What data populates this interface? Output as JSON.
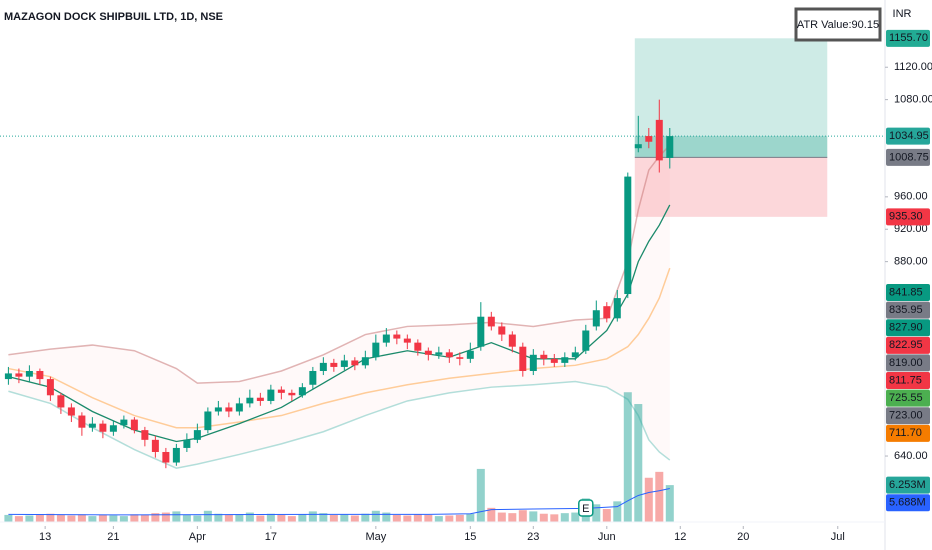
{
  "chart_data": {
    "type": "candlestick",
    "title": "MAZAGON DOCK SHIPBUIL LTD, 1D, NSE",
    "currency": "INR",
    "indicator_label": "ATR Value:90.15",
    "xlim": [
      -0.8,
      83.5
    ],
    "ylim": [
      524,
      1203
    ],
    "volume_ylim": [
      0,
      88.5
    ],
    "colors": {
      "up": "#089981",
      "down": "#f23645"
    },
    "yticks": [
      {
        "value": 1120,
        "label": "1120.00"
      },
      {
        "value": 1080,
        "label": "1080.00"
      },
      {
        "value": 960,
        "label": "960.00"
      },
      {
        "value": 920,
        "label": "920.00"
      },
      {
        "value": 880,
        "label": "880.00"
      },
      {
        "value": 640,
        "label": "640.00"
      }
    ],
    "xticks": [
      {
        "value": 3.5,
        "label": "13"
      },
      {
        "value": 10,
        "label": "21"
      },
      {
        "value": 18,
        "label": "Apr"
      },
      {
        "value": 25,
        "label": "17"
      },
      {
        "value": 35,
        "label": "May"
      },
      {
        "value": 44,
        "label": "15"
      },
      {
        "value": 50,
        "label": "23"
      },
      {
        "value": 57,
        "label": "Jun"
      },
      {
        "value": 64,
        "label": "12"
      },
      {
        "value": 70,
        "label": "20"
      },
      {
        "value": 79,
        "label": "Jul"
      }
    ],
    "open": [
      735,
      742,
      738,
      745,
      735,
      715,
      700,
      690,
      675,
      680,
      670,
      678,
      685,
      672,
      660,
      645,
      632,
      650,
      660,
      672,
      695,
      700,
      695,
      705,
      712,
      708,
      722,
      718,
      715,
      728,
      745,
      755,
      750,
      758,
      752,
      762,
      780,
      790,
      785,
      780,
      770,
      765,
      768,
      762,
      760,
      775,
      812,
      800,
      790,
      775,
      745,
      765,
      760,
      755,
      762,
      770,
      800,
      825,
      810,
      840,
      1020,
      1035,
      1055,
      1008
    ],
    "high": [
      750,
      748,
      752,
      748,
      738,
      718,
      705,
      694,
      688,
      684,
      684,
      690,
      688,
      676,
      665,
      650,
      655,
      668,
      680,
      700,
      708,
      706,
      712,
      722,
      718,
      728,
      726,
      722,
      730,
      750,
      762,
      760,
      765,
      762,
      770,
      790,
      798,
      795,
      790,
      784,
      774,
      775,
      772,
      768,
      780,
      830,
      818,
      805,
      794,
      780,
      772,
      770,
      766,
      768,
      775,
      802,
      832,
      830,
      845,
      990,
      1060,
      1045,
      1080,
      1045
    ],
    "low": [
      728,
      730,
      732,
      728,
      708,
      692,
      682,
      665,
      670,
      662,
      665,
      674,
      668,
      652,
      638,
      625,
      628,
      645,
      656,
      668,
      690,
      688,
      690,
      700,
      702,
      704,
      710,
      708,
      712,
      722,
      740,
      744,
      746,
      746,
      748,
      758,
      775,
      778,
      772,
      764,
      758,
      760,
      755,
      752,
      755,
      770,
      795,
      782,
      768,
      738,
      740,
      752,
      750,
      750,
      758,
      766,
      795,
      805,
      806,
      835,
      1015,
      1020,
      990,
      995
    ],
    "close": [
      742,
      738,
      745,
      735,
      715,
      700,
      690,
      675,
      680,
      670,
      678,
      685,
      672,
      660,
      645,
      632,
      650,
      660,
      672,
      695,
      700,
      695,
      705,
      712,
      708,
      722,
      718,
      715,
      725,
      745,
      755,
      750,
      758,
      752,
      762,
      780,
      790,
      785,
      780,
      770,
      765,
      768,
      762,
      760,
      770,
      812,
      800,
      790,
      775,
      745,
      765,
      760,
      755,
      762,
      768,
      795,
      820,
      810,
      835,
      985,
      1025,
      1028,
      1005,
      1034.95
    ],
    "volume": [
      1.2,
      1.0,
      1.1,
      1.3,
      1.4,
      1.2,
      1.1,
      1.3,
      1.0,
      1.2,
      1.1,
      1.0,
      1.3,
      1.2,
      1.5,
      1.6,
      1.8,
      1.2,
      1.1,
      1.9,
      1.4,
      1.2,
      1.3,
      1.6,
      1.1,
      1.4,
      1.2,
      1.0,
      1.3,
      1.8,
      1.5,
      1.2,
      1.3,
      1.1,
      1.4,
      1.9,
      1.6,
      1.2,
      1.1,
      1.3,
      1.2,
      1.0,
      1.1,
      1.2,
      1.4,
      9.0,
      2.4,
      1.6,
      1.5,
      2.0,
      1.8,
      1.4,
      1.3,
      1.5,
      1.6,
      4.0,
      3.0,
      2.2,
      3.5,
      22.0,
      20.0,
      7.5,
      8.5,
      6.253
    ],
    "lines": [
      {
        "color": "rgba(200,120,120,0.55)",
        "x": [
          0,
          4,
          8,
          12,
          16,
          18,
          22,
          26,
          30,
          34,
          38,
          42,
          46,
          50,
          54,
          57,
          59,
          60,
          61,
          62,
          63
        ],
        "values": [
          765,
          772,
          777,
          770,
          748,
          730,
          732,
          745,
          765,
          790,
          800,
          802,
          805,
          800,
          808,
          810,
          880,
          944,
          993,
          1010,
          1024
        ]
      },
      {
        "color": "rgba(38,166,154,0.35)",
        "x": [
          0,
          4,
          8,
          12,
          16,
          18,
          22,
          26,
          30,
          34,
          38,
          42,
          46,
          50,
          54,
          57,
          59,
          60,
          61,
          62,
          63
        ],
        "values": [
          720,
          705,
          675,
          648,
          625,
          630,
          642,
          655,
          670,
          690,
          708,
          718,
          725,
          728,
          732,
          725,
          710,
          690,
          660,
          645,
          635
        ]
      },
      {
        "color": "#ffcc99",
        "x": [
          0,
          4,
          8,
          12,
          16,
          18,
          22,
          26,
          30,
          34,
          38,
          42,
          46,
          50,
          54,
          57,
          59,
          60,
          61,
          62,
          63
        ],
        "values": [
          748,
          738,
          712,
          690,
          675,
          675,
          682,
          690,
          705,
          718,
          728,
          736,
          742,
          748,
          752,
          760,
          775,
          790,
          810,
          835,
          872
        ]
      },
      {
        "color": "#1b8a6b",
        "x": [
          0,
          4,
          8,
          12,
          16,
          18,
          22,
          26,
          30,
          34,
          38,
          42,
          46,
          50,
          54,
          57,
          59,
          60,
          61,
          62,
          63
        ],
        "values": [
          738,
          725,
          695,
          672,
          658,
          662,
          680,
          700,
          730,
          760,
          770,
          762,
          780,
          760,
          760,
          795,
          840,
          880,
          905,
          925,
          950
        ]
      }
    ],
    "volume_ma": {
      "color": "#2962ff",
      "x": [
        0,
        10,
        20,
        30,
        40,
        44,
        46,
        50,
        55,
        58,
        59,
        60,
        61,
        62,
        63
      ],
      "values": [
        1.3,
        1.2,
        1.25,
        1.3,
        1.3,
        1.4,
        2.1,
        2.2,
        2.3,
        2.6,
        3.6,
        4.5,
        5.0,
        5.3,
        5.688
      ]
    },
    "position": {
      "start": 60,
      "end": 78
    },
    "events": [
      {
        "x": 55,
        "label": "E"
      }
    ],
    "price_tags": [
      {
        "value": 1155.7,
        "label": "1155.70",
        "color": "#22ab94"
      },
      {
        "value": 1034.95,
        "label": "1034.95",
        "color": "#26a69a"
      },
      {
        "value": 1008.75,
        "label": "1008.75",
        "color": "#787b86"
      },
      {
        "value": 935.3,
        "label": "935.30",
        "color": "#f23645"
      },
      {
        "value": 841.85,
        "label": "841.85",
        "color": "#089981"
      },
      {
        "value": 835.95,
        "label": "835.95",
        "color": "#787b86"
      },
      {
        "value": 827.9,
        "label": "827.90",
        "color": "#089981"
      },
      {
        "value": 822.95,
        "label": "822.95",
        "color": "#f23645"
      },
      {
        "value": 819,
        "label": "819.00",
        "color": "#787b86"
      },
      {
        "value": 811.75,
        "label": "811.75",
        "color": "#f23645"
      },
      {
        "value": 725.55,
        "label": "725.55",
        "color": "#4caf50"
      },
      {
        "value": 723,
        "label": "723.00",
        "color": "#787b86"
      },
      {
        "value": 711.7,
        "label": "711.70",
        "color": "#f57c00"
      }
    ],
    "volume_tags": [
      {
        "value": 6.253,
        "label": "6.253M",
        "color": "#26a69a"
      },
      {
        "value": 5.688,
        "label": "5.688M",
        "color": "#2962ff"
      }
    ]
  }
}
